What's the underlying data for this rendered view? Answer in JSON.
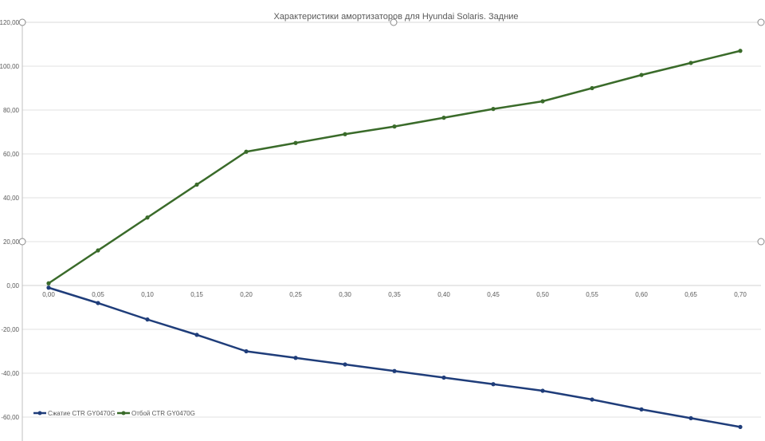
{
  "chart_data": {
    "type": "line",
    "title": "Характеристики амортизаторов для Hyundai Solaris. Задние",
    "xlabel": "",
    "ylabel": "",
    "categories": [
      "0,00",
      "0,05",
      "0,10",
      "0,15",
      "0,20",
      "0,25",
      "0,30",
      "0,35",
      "0,40",
      "0,45",
      "0,50",
      "0,55",
      "0,60",
      "0,65",
      "0,70"
    ],
    "x": [
      0.0,
      0.05,
      0.1,
      0.15,
      0.2,
      0.25,
      0.3,
      0.35,
      0.4,
      0.45,
      0.5,
      0.55,
      0.6,
      0.65,
      0.7
    ],
    "ylim": [
      -60,
      120
    ],
    "yticks": [
      "120,00",
      "100,00",
      "80,00",
      "60,00",
      "40,00",
      "20,00",
      "0,00",
      "-20,00",
      "-40,00",
      "-60,00"
    ],
    "grid": true,
    "legend_position": "bottom-left",
    "series": [
      {
        "name": "Сжатие CTR GY0470G",
        "color": "#1F3D7A",
        "values": [
          -1,
          -8,
          -15.5,
          -22.5,
          -30,
          -33,
          -36,
          -39,
          -42,
          -45,
          -48,
          -52,
          -56.5,
          -60.5,
          -64.5
        ]
      },
      {
        "name": "Отбой CTR GY0470G",
        "color": "#3A6B2A",
        "values": [
          1,
          16,
          31,
          46,
          61,
          65,
          69,
          72.5,
          76.5,
          80.5,
          84,
          90,
          96,
          101.5,
          107
        ]
      }
    ]
  }
}
